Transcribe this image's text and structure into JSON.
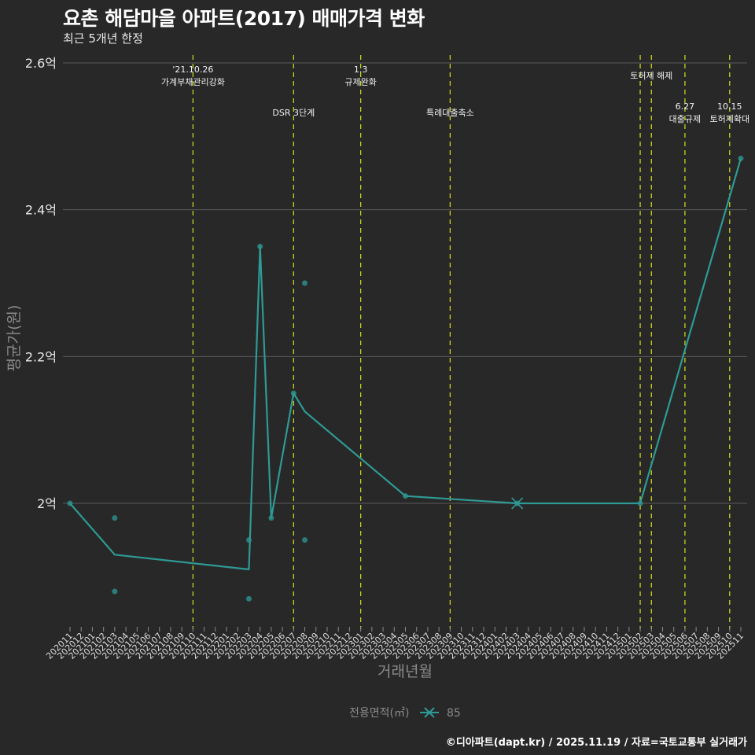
{
  "header": {
    "title": "요촌 해담마을 아파트(2017) 매매가격 변화",
    "subtitle": "최근 5개년 한정"
  },
  "footer": {
    "caption": "©디아파트(dapt.kr) / 2025.11.19 / 자료=국토교통부 실거래가"
  },
  "colors": {
    "background": "#282828",
    "grid": "#5a5a5a",
    "series": "#2e9a94",
    "vline": "#c8d21e"
  },
  "chart_data": {
    "type": "line",
    "title": "요촌 해담마을 아파트(2017) 매매가격 변화",
    "subtitle": "최근 5개년 한정",
    "xlabel": "거래년월",
    "ylabel": "평균가(원)",
    "ylim": [
      1.84,
      2.6
    ],
    "y_ticks": [
      {
        "value": 2.0,
        "label": "2억"
      },
      {
        "value": 2.2,
        "label": "2.2억"
      },
      {
        "value": 2.4,
        "label": "2.4억"
      },
      {
        "value": 2.6,
        "label": "2.6억"
      }
    ],
    "x_categories": [
      "202011",
      "202012",
      "202101",
      "202102",
      "202103",
      "202104",
      "202105",
      "202106",
      "202107",
      "202108",
      "202109",
      "202110",
      "202111",
      "202112",
      "202201",
      "202202",
      "202203",
      "202204",
      "202205",
      "202206",
      "202207",
      "202208",
      "202209",
      "202210",
      "202211",
      "202212",
      "202301",
      "202302",
      "202303",
      "202304",
      "202305",
      "202306",
      "202307",
      "202308",
      "202309",
      "202310",
      "202311",
      "202312",
      "202401",
      "202402",
      "202403",
      "202404",
      "202405",
      "202406",
      "202407",
      "202408",
      "202409",
      "202410",
      "202411",
      "202412",
      "202501",
      "202502",
      "202503",
      "202504",
      "202505",
      "202506",
      "202507",
      "202508",
      "202509",
      "202510",
      "202511"
    ],
    "grid": true,
    "legend": {
      "position": "bottom",
      "title": "전용면적(㎡)",
      "entries": [
        "85"
      ]
    },
    "series": [
      {
        "name": "85",
        "unit": "억원",
        "line": [
          {
            "x": "202011",
            "y": 2.0
          },
          {
            "x": "202103",
            "y": 1.93
          },
          {
            "x": "202203",
            "y": 1.91
          },
          {
            "x": "202204",
            "y": 2.35
          },
          {
            "x": "202205",
            "y": 1.98
          },
          {
            "x": "202207",
            "y": 2.15
          },
          {
            "x": "202208",
            "y": 2.125
          },
          {
            "x": "202305",
            "y": 2.01
          },
          {
            "x": "202403",
            "y": 2.0
          },
          {
            "x": "202502",
            "y": 2.0
          },
          {
            "x": "202511",
            "y": 2.47
          }
        ],
        "points": [
          {
            "x": "202011",
            "y": 2.0
          },
          {
            "x": "202103",
            "y": 1.98
          },
          {
            "x": "202103",
            "y": 1.88
          },
          {
            "x": "202203",
            "y": 1.95
          },
          {
            "x": "202203",
            "y": 1.87
          },
          {
            "x": "202204",
            "y": 2.35
          },
          {
            "x": "202205",
            "y": 1.98
          },
          {
            "x": "202207",
            "y": 2.15
          },
          {
            "x": "202208",
            "y": 2.3
          },
          {
            "x": "202208",
            "y": 1.95
          },
          {
            "x": "202305",
            "y": 2.01
          },
          {
            "x": "202403",
            "y": 2.0
          },
          {
            "x": "202502",
            "y": 2.0
          },
          {
            "x": "202511",
            "y": 2.47
          }
        ],
        "highlight": {
          "x": "202403",
          "y": 2.0,
          "marker": "x"
        }
      }
    ],
    "annotations": [
      {
        "x": "202110",
        "lines": [
          "'21.10.26",
          "가계부채관리강화"
        ],
        "row": 0
      },
      {
        "x": "202207",
        "lines": [
          "DSR 3단계"
        ],
        "row": 2
      },
      {
        "x": "202301",
        "lines": [
          "1.3",
          "규제완화"
        ],
        "row": 0
      },
      {
        "x": "202309",
        "lines": [
          "특례대출축소"
        ],
        "row": 2
      },
      {
        "x": "202502",
        "lines": [],
        "row": 0
      },
      {
        "x": "202503",
        "lines": [
          "토허제 해제"
        ],
        "row": 1
      },
      {
        "x": "202506",
        "lines": [
          "6.27",
          "대출규제"
        ],
        "row": 3
      },
      {
        "x": "202510",
        "lines": [
          "10.15",
          "토허제확대"
        ],
        "row": 3
      }
    ]
  }
}
